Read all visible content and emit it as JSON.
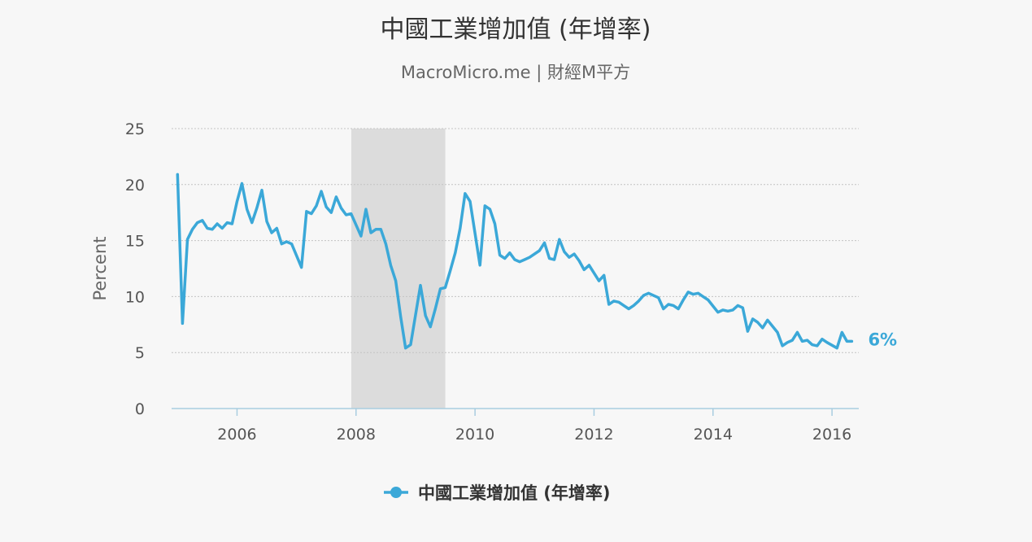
{
  "chart_data": {
    "type": "line",
    "title": "中國工業增加值 (年增率)",
    "subtitle": "MacroMicro.me | 財經M平方",
    "ylabel": "Percent",
    "xlabel": "",
    "xlim": [
      2004.9,
      2016.45
    ],
    "ylim": [
      0,
      25
    ],
    "y_ticks": [
      0,
      5,
      10,
      15,
      20,
      25
    ],
    "x_ticks": [
      2006,
      2008,
      2010,
      2012,
      2014,
      2016
    ],
    "grid": "horizontal-dotted",
    "legend_position": "bottom-center",
    "shaded_period": {
      "start": 2007.92,
      "end": 2009.5
    },
    "end_label": "6%",
    "series_color": "#3ba8d8",
    "series": [
      {
        "name": "中國工業增加值 (年增率)",
        "points": [
          [
            2005.0,
            20.9
          ],
          [
            2005.083,
            7.6
          ],
          [
            2005.167,
            15.1
          ],
          [
            2005.25,
            16.0
          ],
          [
            2005.333,
            16.6
          ],
          [
            2005.417,
            16.8
          ],
          [
            2005.5,
            16.1
          ],
          [
            2005.583,
            16.0
          ],
          [
            2005.667,
            16.5
          ],
          [
            2005.75,
            16.1
          ],
          [
            2005.833,
            16.6
          ],
          [
            2005.917,
            16.5
          ],
          [
            2006.0,
            18.5
          ],
          [
            2006.083,
            20.1
          ],
          [
            2006.167,
            17.8
          ],
          [
            2006.25,
            16.6
          ],
          [
            2006.333,
            17.9
          ],
          [
            2006.417,
            19.5
          ],
          [
            2006.5,
            16.7
          ],
          [
            2006.583,
            15.7
          ],
          [
            2006.667,
            16.1
          ],
          [
            2006.75,
            14.7
          ],
          [
            2006.833,
            14.9
          ],
          [
            2006.917,
            14.7
          ],
          [
            2007.083,
            12.6
          ],
          [
            2007.167,
            17.6
          ],
          [
            2007.25,
            17.4
          ],
          [
            2007.333,
            18.1
          ],
          [
            2007.417,
            19.4
          ],
          [
            2007.5,
            18.0
          ],
          [
            2007.583,
            17.5
          ],
          [
            2007.667,
            18.9
          ],
          [
            2007.75,
            17.9
          ],
          [
            2007.833,
            17.3
          ],
          [
            2007.917,
            17.4
          ],
          [
            2008.083,
            15.4
          ],
          [
            2008.167,
            17.8
          ],
          [
            2008.25,
            15.7
          ],
          [
            2008.333,
            16.0
          ],
          [
            2008.417,
            16.0
          ],
          [
            2008.5,
            14.7
          ],
          [
            2008.583,
            12.8
          ],
          [
            2008.667,
            11.4
          ],
          [
            2008.75,
            8.2
          ],
          [
            2008.833,
            5.4
          ],
          [
            2008.917,
            5.7
          ],
          [
            2009.083,
            11.0
          ],
          [
            2009.167,
            8.3
          ],
          [
            2009.25,
            7.3
          ],
          [
            2009.333,
            8.9
          ],
          [
            2009.417,
            10.7
          ],
          [
            2009.5,
            10.8
          ],
          [
            2009.583,
            12.3
          ],
          [
            2009.667,
            13.9
          ],
          [
            2009.75,
            16.1
          ],
          [
            2009.833,
            19.2
          ],
          [
            2009.917,
            18.5
          ],
          [
            2010.083,
            12.8
          ],
          [
            2010.167,
            18.1
          ],
          [
            2010.25,
            17.8
          ],
          [
            2010.333,
            16.5
          ],
          [
            2010.417,
            13.7
          ],
          [
            2010.5,
            13.4
          ],
          [
            2010.583,
            13.9
          ],
          [
            2010.667,
            13.3
          ],
          [
            2010.75,
            13.1
          ],
          [
            2010.833,
            13.3
          ],
          [
            2010.917,
            13.5
          ],
          [
            2011.083,
            14.1
          ],
          [
            2011.167,
            14.8
          ],
          [
            2011.25,
            13.4
          ],
          [
            2011.333,
            13.3
          ],
          [
            2011.417,
            15.1
          ],
          [
            2011.5,
            14.0
          ],
          [
            2011.583,
            13.5
          ],
          [
            2011.667,
            13.8
          ],
          [
            2011.75,
            13.2
          ],
          [
            2011.833,
            12.4
          ],
          [
            2011.917,
            12.8
          ],
          [
            2012.083,
            11.4
          ],
          [
            2012.167,
            11.9
          ],
          [
            2012.25,
            9.3
          ],
          [
            2012.333,
            9.6
          ],
          [
            2012.417,
            9.5
          ],
          [
            2012.5,
            9.2
          ],
          [
            2012.583,
            8.9
          ],
          [
            2012.667,
            9.2
          ],
          [
            2012.75,
            9.6
          ],
          [
            2012.833,
            10.1
          ],
          [
            2012.917,
            10.3
          ],
          [
            2013.083,
            9.9
          ],
          [
            2013.167,
            8.9
          ],
          [
            2013.25,
            9.3
          ],
          [
            2013.333,
            9.2
          ],
          [
            2013.417,
            8.9
          ],
          [
            2013.5,
            9.7
          ],
          [
            2013.583,
            10.4
          ],
          [
            2013.667,
            10.2
          ],
          [
            2013.75,
            10.3
          ],
          [
            2013.833,
            10.0
          ],
          [
            2013.917,
            9.7
          ],
          [
            2014.083,
            8.6
          ],
          [
            2014.167,
            8.8
          ],
          [
            2014.25,
            8.7
          ],
          [
            2014.333,
            8.8
          ],
          [
            2014.417,
            9.2
          ],
          [
            2014.5,
            9.0
          ],
          [
            2014.583,
            6.9
          ],
          [
            2014.667,
            8.0
          ],
          [
            2014.75,
            7.7
          ],
          [
            2014.833,
            7.2
          ],
          [
            2014.917,
            7.9
          ],
          [
            2015.083,
            6.8
          ],
          [
            2015.167,
            5.6
          ],
          [
            2015.25,
            5.9
          ],
          [
            2015.333,
            6.1
          ],
          [
            2015.417,
            6.8
          ],
          [
            2015.5,
            6.0
          ],
          [
            2015.583,
            6.1
          ],
          [
            2015.667,
            5.7
          ],
          [
            2015.75,
            5.6
          ],
          [
            2015.833,
            6.2
          ],
          [
            2015.917,
            5.9
          ],
          [
            2016.083,
            5.4
          ],
          [
            2016.167,
            6.8
          ],
          [
            2016.25,
            6.0
          ],
          [
            2016.333,
            6.0
          ]
        ]
      }
    ]
  }
}
